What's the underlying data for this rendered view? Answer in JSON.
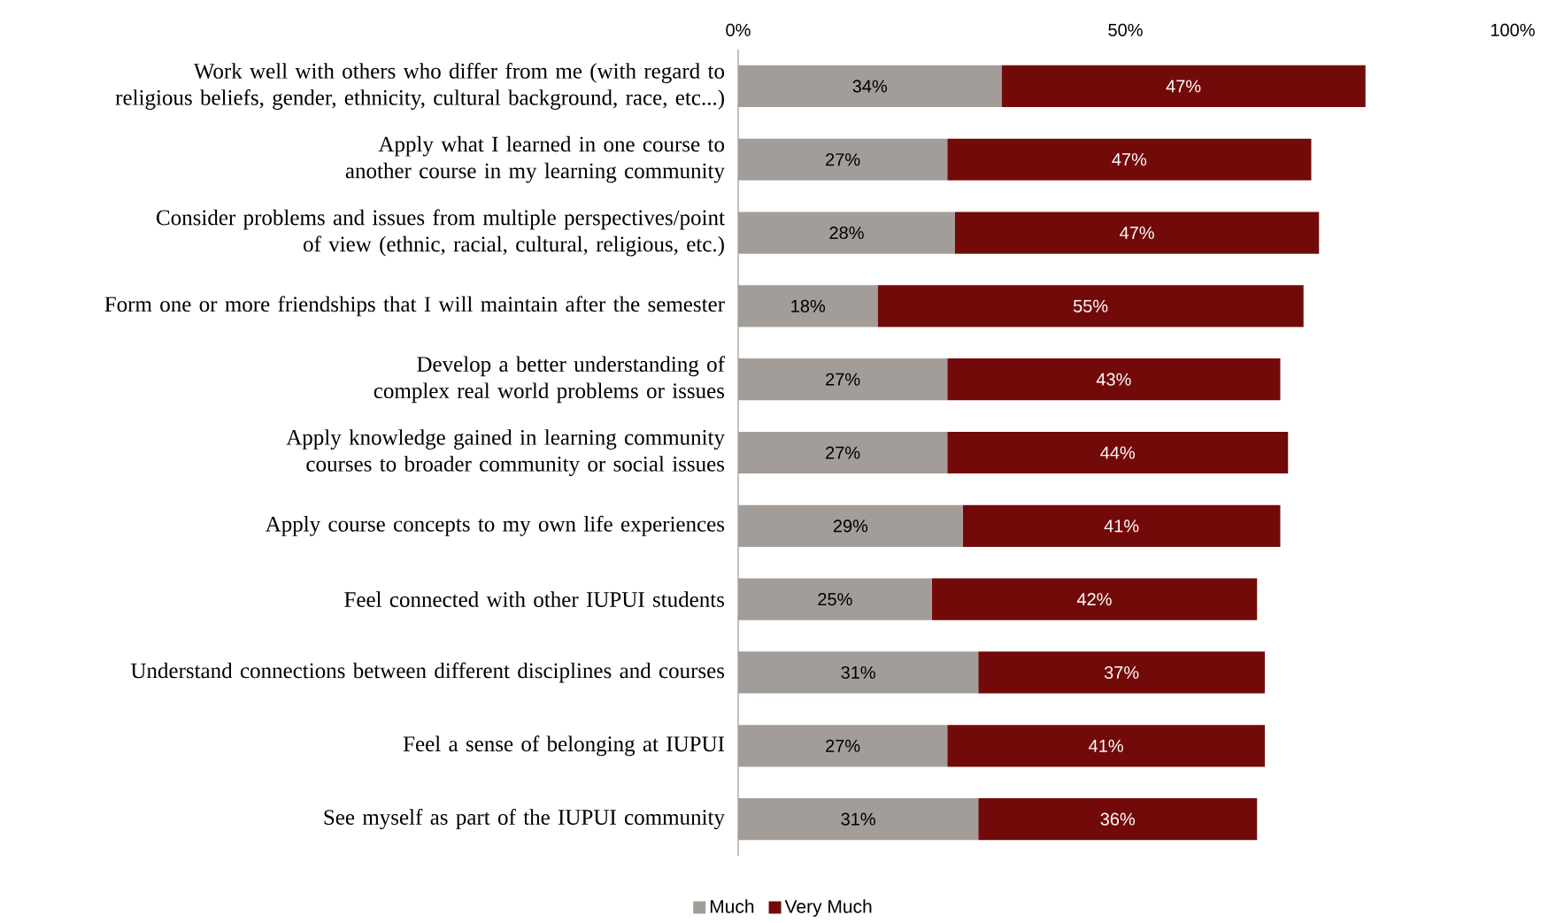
{
  "chart_data": {
    "type": "bar",
    "orientation": "horizontal",
    "stacked": true,
    "categories": [
      "Work well with others who differ from me (with regard to religious beliefs, gender, ethnicity, cultural background, race, etc...)",
      "Apply what I learned in one course to another course in my learning community",
      "Consider problems and issues from multiple perspectives/point of view (ethnic, racial, cultural, religious, etc.)",
      "Form one or more friendships that I will maintain after the semester",
      "Develop a better understanding of complex real world problems or issues",
      "Apply knowledge gained in learning community courses to broader community or social issues",
      "Apply course concepts to my own life experiences",
      "Feel connected with other IUPUI students",
      "Understand connections between different disciplines and courses",
      "Feel a sense of belonging at IUPUI",
      "See myself as part of the IUPUI community"
    ],
    "series": [
      {
        "name": "Much",
        "color": "#a29d98",
        "values": [
          34,
          27,
          28,
          18,
          27,
          27,
          29,
          25,
          31,
          27,
          31
        ],
        "value_labels": [
          "34%",
          "27%",
          "28%",
          "18%",
          "27%",
          "27%",
          "29%",
          "25%",
          "31%",
          "27%",
          "31%"
        ]
      },
      {
        "name": "Very Much",
        "color": "#730a0a",
        "values": [
          47,
          47,
          47,
          55,
          43,
          44,
          41,
          42,
          37,
          41,
          36
        ],
        "value_labels": [
          "47%",
          "47%",
          "47%",
          "55%",
          "43%",
          "44%",
          "41%",
          "42%",
          "37%",
          "41%",
          "36%"
        ]
      }
    ],
    "xlim": [
      0,
      100
    ],
    "xticks": [
      {
        "value": 0,
        "label": "0%"
      },
      {
        "value": 50,
        "label": "50%"
      },
      {
        "value": 100,
        "label": "100%"
      }
    ],
    "legend": "bottom"
  }
}
